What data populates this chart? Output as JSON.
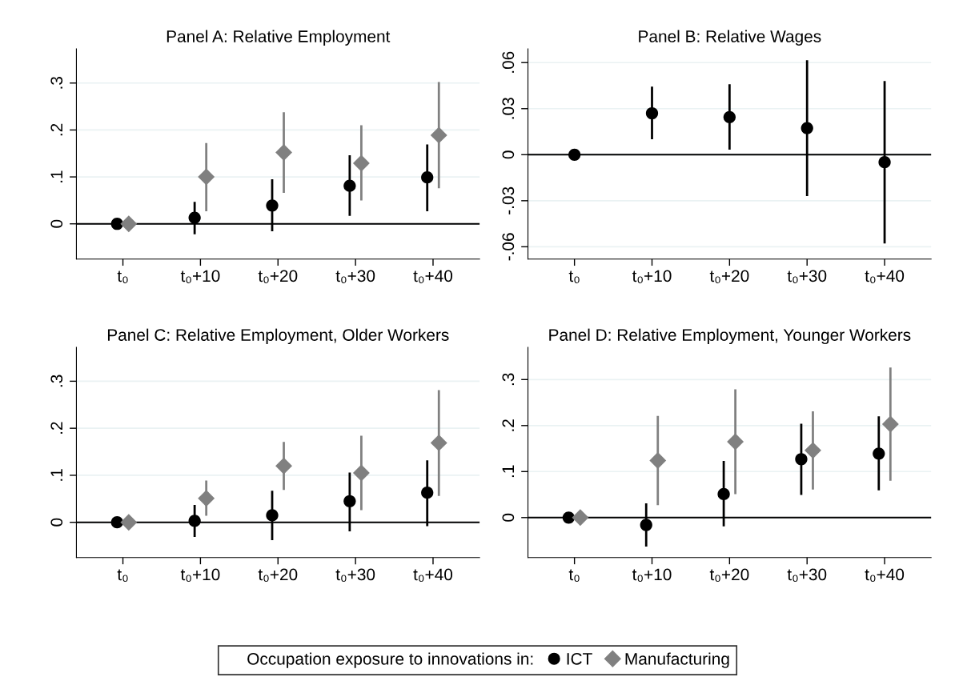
{
  "chart_data": [
    {
      "type": "scatter",
      "title": "Panel A: Relative Employment",
      "categories": [
        "t₀",
        "t₀+10",
        "t₀+20",
        "t₀+30",
        "t₀+40"
      ],
      "ylim": [
        -0.075,
        0.373
      ],
      "yticks": [
        {
          "value": 0,
          "label": "0"
        },
        {
          "value": 0.1,
          "label": ".1"
        },
        {
          "value": 0.2,
          "label": ".2"
        },
        {
          "value": 0.3,
          "label": ".3"
        }
      ],
      "grid": "y",
      "ref_lines": [
        {
          "axis": "y",
          "value": 0,
          "color": "#000000"
        }
      ],
      "legend": "bottom",
      "legend_title": "Occupation exposure to innovations in:",
      "series": [
        {
          "name": "ICT",
          "color": "#000000",
          "marker": "circle",
          "values": [
            0,
            0.013,
            0.039,
            0.081,
            0.099
          ],
          "errors": [
            null,
            [
              -0.022,
              0.047
            ],
            [
              -0.016,
              0.095
            ],
            [
              0.017,
              0.146
            ],
            [
              0.027,
              0.169
            ]
          ]
        },
        {
          "name": "Manufacturing",
          "color": "#808080",
          "marker": "diamond",
          "values": [
            0,
            0.1,
            0.152,
            0.129,
            0.189
          ],
          "errors": [
            null,
            [
              0.027,
              0.172
            ],
            [
              0.066,
              0.238
            ],
            [
              0.05,
              0.21
            ],
            [
              0.076,
              0.302
            ]
          ]
        }
      ]
    },
    {
      "type": "scatter",
      "title": "Panel B: Relative Wages",
      "categories": [
        "t₀",
        "t₀+10",
        "t₀+20",
        "t₀+30",
        "t₀+40"
      ],
      "ylim": [
        -0.068,
        0.069
      ],
      "yticks": [
        {
          "value": -0.06,
          "label": "-.06"
        },
        {
          "value": -0.03,
          "label": "-.03"
        },
        {
          "value": 0,
          "label": "0"
        },
        {
          "value": 0.03,
          "label": ".03"
        },
        {
          "value": 0.06,
          "label": ".06"
        }
      ],
      "grid": "y",
      "ref_lines": [
        {
          "axis": "y",
          "value": 0,
          "color": "#000000"
        }
      ],
      "series": [
        {
          "name": "ICT",
          "color": "#000000",
          "marker": "circle",
          "values": [
            0,
            0.027,
            0.0245,
            0.0173,
            -0.0049
          ],
          "errors": [
            null,
            [
              0.01,
              0.0443
            ],
            [
              0.0033,
              0.0459
            ],
            [
              -0.027,
              0.0616
            ],
            [
              -0.0578,
              0.048
            ]
          ]
        }
      ]
    },
    {
      "type": "scatter",
      "title": "Panel C: Relative Employment, Older Workers",
      "categories": [
        "t₀",
        "t₀+10",
        "t₀+20",
        "t₀+30",
        "t₀+40"
      ],
      "ylim": [
        -0.075,
        0.372
      ],
      "yticks": [
        {
          "value": 0,
          "label": "0"
        },
        {
          "value": 0.1,
          "label": ".1"
        },
        {
          "value": 0.2,
          "label": ".2"
        },
        {
          "value": 0.3,
          "label": ".3"
        }
      ],
      "grid": "y",
      "ref_lines": [
        {
          "axis": "y",
          "value": 0,
          "color": "#000000"
        }
      ],
      "series": [
        {
          "name": "ICT",
          "color": "#000000",
          "marker": "circle",
          "values": [
            0,
            0.003,
            0.015,
            0.045,
            0.063
          ],
          "errors": [
            null,
            [
              -0.031,
              0.037
            ],
            [
              -0.038,
              0.067
            ],
            [
              -0.019,
              0.106
            ],
            [
              -0.008,
              0.132
            ]
          ]
        },
        {
          "name": "Manufacturing",
          "color": "#808080",
          "marker": "diamond",
          "values": [
            0,
            0.051,
            0.12,
            0.105,
            0.169
          ],
          "errors": [
            null,
            [
              0.014,
              0.089
            ],
            [
              0.069,
              0.171
            ],
            [
              0.026,
              0.184
            ],
            [
              0.056,
              0.281
            ]
          ]
        }
      ]
    },
    {
      "type": "scatter",
      "title": "Panel D: Relative Employment, Younger Workers",
      "categories": [
        "t₀",
        "t₀+10",
        "t₀+20",
        "t₀+30",
        "t₀+40"
      ],
      "ylim": [
        -0.087,
        0.37
      ],
      "yticks": [
        {
          "value": 0,
          "label": "0"
        },
        {
          "value": 0.1,
          "label": ".1"
        },
        {
          "value": 0.2,
          "label": ".2"
        },
        {
          "value": 0.3,
          "label": ".3"
        }
      ],
      "grid": "y",
      "ref_lines": [
        {
          "axis": "y",
          "value": 0,
          "color": "#000000"
        }
      ],
      "series": [
        {
          "name": "ICT",
          "color": "#000000",
          "marker": "circle",
          "values": [
            0,
            -0.016,
            0.051,
            0.127,
            0.139
          ],
          "errors": [
            null,
            [
              -0.063,
              0.031
            ],
            [
              -0.019,
              0.123
            ],
            [
              0.049,
              0.204
            ],
            [
              0.059,
              0.22
            ]
          ]
        },
        {
          "name": "Manufacturing",
          "color": "#808080",
          "marker": "diamond",
          "values": [
            0,
            0.124,
            0.165,
            0.146,
            0.203
          ],
          "errors": [
            null,
            [
              0.027,
              0.221
            ],
            [
              0.051,
              0.279
            ],
            [
              0.061,
              0.231
            ],
            [
              0.08,
              0.326
            ]
          ]
        }
      ]
    }
  ]
}
